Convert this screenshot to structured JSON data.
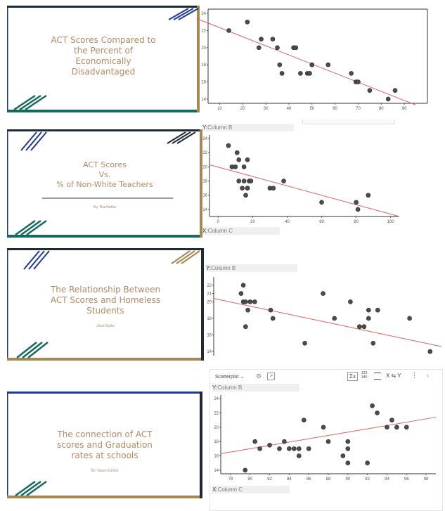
{
  "slides": [
    {
      "title_lines": [
        "ACT Scores Compared to",
        "the Percent of",
        "Economically",
        "Disadvantaged"
      ],
      "author": ""
    },
    {
      "title_lines": [
        "ACT Scores",
        "Vs.",
        "% of Non-White Teachers"
      ],
      "author": "By: Ria Amtha"
    },
    {
      "title_lines": [
        "The Relationship Between",
        "ACT Scores and Homeless",
        "Students"
      ],
      "author": "Josie Burks"
    },
    {
      "title_lines": [
        "The connection of ACT",
        "scores and Graduation",
        "rates at schools"
      ],
      "author": "By: Tatum Kumlot"
    }
  ],
  "axis_labels": {
    "y_prefix": "Y:",
    "x_prefix": "X:",
    "y_column": "Column B",
    "x_column": "Column C"
  },
  "toolbar": {
    "chart_type": "Scatterplot",
    "sigma": "Σx",
    "numbers": "123\n345",
    "swap": "X ⇆ Y"
  },
  "colors": {
    "navy": "#1f3a93",
    "teal": "#16695f",
    "gold": "#a8884e",
    "dark": "#1e2a36",
    "title": "#b08a63",
    "point": "#4d4d4d",
    "trend": "#e06060"
  },
  "chart_data": [
    {
      "type": "scatter",
      "title": "",
      "xlabel": "",
      "ylabel": "",
      "xlim": [
        5,
        100
      ],
      "ylim": [
        13.5,
        24.5
      ],
      "xticks": [
        10,
        20,
        30,
        40,
        50,
        60,
        70,
        80,
        90
      ],
      "yticks": [
        14,
        16,
        18,
        20,
        22,
        24
      ],
      "x": [
        14,
        22,
        27,
        28,
        33,
        35,
        36,
        37,
        42,
        43,
        45,
        48,
        49,
        50,
        50,
        57,
        67,
        69,
        70,
        75,
        83,
        86
      ],
      "y": [
        22,
        23,
        20,
        21,
        21,
        20,
        18,
        17,
        20,
        20,
        17,
        17,
        17,
        18,
        18,
        18,
        17,
        16,
        16,
        15,
        14,
        15
      ],
      "trend": {
        "x": [
          0,
          95
        ],
        "y": [
          23.4,
          13.3
        ]
      }
    },
    {
      "type": "scatter",
      "title": "",
      "xlabel": "Column C",
      "ylabel": "Column B",
      "xlim": [
        -5,
        105
      ],
      "ylim": [
        13,
        24.5
      ],
      "xticks": [
        0,
        20,
        40,
        60,
        80,
        100
      ],
      "yticks": [
        14,
        16,
        18,
        20,
        22,
        24
      ],
      "x": [
        6,
        8,
        10,
        11,
        12,
        12,
        14,
        15,
        15,
        16,
        17,
        17,
        17,
        18,
        19,
        30,
        32,
        38,
        60,
        80,
        81,
        87
      ],
      "y": [
        23,
        20,
        20,
        22,
        21,
        18,
        17,
        20,
        18,
        16,
        17,
        21,
        17,
        18,
        18,
        17,
        17,
        18,
        15,
        15,
        14,
        16
      ],
      "trend": {
        "x": [
          -5,
          105
        ],
        "y": [
          20.3,
          13
        ]
      }
    },
    {
      "type": "scatter",
      "title": "",
      "xlabel": "",
      "ylabel": "Column B",
      "xlim": [
        0,
        100
      ],
      "ylim": [
        13.5,
        23
      ],
      "xticks": [],
      "yticks": [
        14,
        16,
        18,
        20,
        21,
        22
      ],
      "x": [
        12,
        13,
        13,
        14,
        14,
        15,
        16,
        18,
        25,
        26,
        40,
        48,
        53,
        60,
        64,
        66,
        68,
        68,
        70,
        72,
        86,
        95
      ],
      "y": [
        21,
        22,
        20,
        17,
        20,
        19,
        20,
        20,
        19,
        18,
        15,
        21,
        18,
        20,
        17,
        17,
        18,
        19,
        15,
        19,
        18,
        14
      ],
      "trend": {
        "x": [
          0,
          100
        ],
        "y": [
          20.4,
          14.6
        ]
      }
    },
    {
      "type": "scatter",
      "title": "",
      "xlabel": "Column C",
      "ylabel": "Column B",
      "xlim": [
        77,
        99
      ],
      "ylim": [
        13.5,
        24.5
      ],
      "xticks": [
        78,
        80,
        82,
        84,
        86,
        88,
        90,
        92,
        94,
        96,
        98
      ],
      "yticks": [
        14,
        16,
        18,
        20,
        22,
        24
      ],
      "x": [
        79.5,
        80.5,
        81,
        82,
        83,
        83.5,
        84,
        84.5,
        85,
        85,
        85.5,
        86,
        87.5,
        88,
        89.5,
        90,
        90,
        90,
        92,
        92.5,
        93,
        94,
        94.5,
        95,
        96
      ],
      "y": [
        14,
        18,
        17,
        17.5,
        17,
        18,
        17,
        17,
        17,
        16,
        21,
        17,
        20,
        18,
        16,
        15,
        18,
        17,
        15,
        23,
        22,
        20,
        21,
        20,
        20
      ],
      "trend": {
        "x": [
          77,
          99
        ],
        "y": [
          16.3,
          21.4
        ]
      }
    }
  ]
}
